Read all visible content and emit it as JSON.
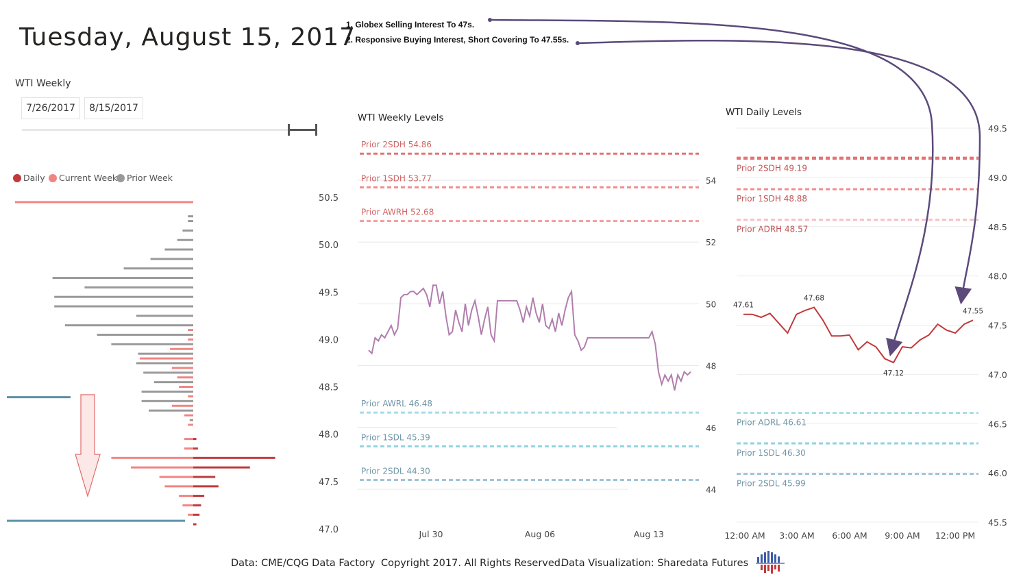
{
  "header": {
    "title": "Tuesday, August 15, 2017",
    "notes": [
      "1. Globex Selling Interest To 47s.",
      "2. Responsive Buying Interest, Short Covering To 47.55s."
    ]
  },
  "slicer": {
    "title": "WTI Weekly",
    "start_date": "7/26/2017",
    "end_date": "8/15/2017"
  },
  "legend": {
    "items": [
      {
        "label": "Daily",
        "color": "#C0393B"
      },
      {
        "label": "Current Week",
        "color": "#F28482"
      },
      {
        "label": "Prior Week",
        "color": "#999999"
      }
    ]
  },
  "footer": {
    "source": "Data: CME/CQG Data Factory",
    "copyright": "Copyright 2017. All Rights Reserved.",
    "credit": "Data Visualization: Sharedata Futures"
  },
  "chart_data": [
    {
      "type": "bar",
      "title": "Volume Profile",
      "orientation": "horizontal",
      "y_ticks": [
        "50.5",
        "50.0",
        "49.5",
        "49.0",
        "48.5",
        "48.0",
        "47.5",
        "47.0"
      ],
      "ylim": [
        47.0,
        50.5
      ],
      "series": [
        {
          "name": "Prior Week",
          "color": "#999999",
          "direction": "left",
          "levels": [
            50.3,
            50.25,
            50.15,
            50.05,
            49.95,
            49.85,
            49.75,
            49.65,
            49.55,
            49.45,
            49.35,
            49.25,
            49.15,
            49.05,
            48.95,
            48.85,
            48.75,
            48.65,
            48.55,
            48.45,
            48.35,
            48.25,
            48.15
          ],
          "values": [
            0.03,
            0.03,
            0.06,
            0.09,
            0.16,
            0.24,
            0.39,
            0.79,
            0.61,
            0.78,
            0.78,
            0.32,
            0.72,
            0.54,
            0.46,
            0.31,
            0.32,
            0.28,
            0.22,
            0.29,
            0.29,
            0.25,
            0.02
          ]
        },
        {
          "name": "Current Week",
          "color": "#F28482",
          "direction": "left",
          "levels": [
            50.45,
            49.1,
            49.0,
            48.9,
            48.8,
            48.7,
            48.6,
            48.5,
            48.4,
            48.3,
            48.2,
            48.1,
            47.95,
            47.85,
            47.75,
            47.65,
            47.55,
            47.45,
            47.35,
            47.25,
            47.15
          ],
          "values": [
            1.0,
            0.03,
            0.03,
            0.13,
            0.3,
            0.12,
            0.09,
            0.08,
            0.03,
            0.12,
            0.05,
            0.03,
            0.05,
            0.05,
            0.46,
            0.35,
            0.19,
            0.16,
            0.08,
            0.06,
            0.03
          ]
        },
        {
          "name": "Daily",
          "color": "#C0393B",
          "direction": "right",
          "levels": [
            47.95,
            47.85,
            47.75,
            47.65,
            47.55,
            47.45,
            47.35,
            47.25,
            47.15,
            47.05
          ],
          "values": [
            0.02,
            0.03,
            0.52,
            0.36,
            0.14,
            0.16,
            0.07,
            0.05,
            0.04,
            0.02
          ]
        }
      ],
      "annotation": "downward arrow toward 47.0 zone"
    },
    {
      "type": "line",
      "title": "WTI Weekly Levels",
      "x_ticks": [
        "Jul 30",
        "Aug 06",
        "Aug 13"
      ],
      "y_ticks": [
        "54",
        "52",
        "50",
        "48",
        "46",
        "44"
      ],
      "ylim": [
        43.9,
        55.5
      ],
      "levels": [
        {
          "label": "Prior 2SDH 54.86",
          "value": 54.86,
          "color": "#E57373"
        },
        {
          "label": "Prior 1SDH 53.77",
          "value": 53.77,
          "color": "#F08C8C"
        },
        {
          "label": "Prior AWRH 52.68",
          "value": 52.68,
          "color": "#F4A2A2"
        },
        {
          "label": "Prior AWRL 46.48",
          "value": 46.48,
          "color": "#A7DDE8"
        },
        {
          "label": "Prior 1SDL 45.39",
          "value": 45.39,
          "color": "#8FD3E0"
        },
        {
          "label": "Prior 2SDL 44.30",
          "value": 44.3,
          "color": "#9FC4D6"
        }
      ],
      "series": [
        {
          "name": "WTI",
          "color": "#B07EAD",
          "x": [
            0,
            1,
            2,
            3,
            4,
            5,
            6,
            7,
            8,
            9,
            10,
            11,
            12,
            13,
            14,
            15,
            16,
            17,
            18,
            19,
            20,
            21,
            22,
            23,
            24,
            25,
            26,
            27,
            28,
            29,
            30,
            31,
            32,
            33,
            34,
            35,
            36,
            37,
            38,
            39,
            40,
            41,
            42,
            43,
            44,
            45,
            46,
            47,
            48,
            49,
            50,
            51,
            52,
            53,
            54,
            55,
            56,
            57,
            58,
            59,
            60,
            61,
            62,
            63,
            64,
            65,
            66,
            67,
            68,
            69,
            70,
            71,
            72,
            73,
            74,
            75,
            76,
            77,
            78,
            79,
            80,
            81,
            82,
            83,
            84,
            85,
            86,
            87,
            88,
            89,
            90,
            91,
            92,
            93,
            94,
            95,
            96,
            97,
            98,
            99,
            100
          ],
          "y": [
            48.5,
            48.4,
            48.9,
            48.8,
            49.0,
            48.9,
            49.1,
            49.3,
            49.0,
            49.2,
            50.2,
            50.3,
            50.3,
            50.4,
            50.4,
            50.3,
            50.4,
            50.5,
            50.3,
            49.9,
            50.6,
            50.6,
            50.0,
            50.4,
            49.6,
            49.0,
            49.1,
            49.8,
            49.4,
            49.1,
            50.0,
            49.3,
            49.8,
            50.1,
            49.6,
            49.0,
            49.5,
            49.9,
            49.0,
            48.8,
            50.1,
            50.1,
            50.1,
            50.1,
            50.1,
            50.1,
            50.1,
            49.8,
            49.4,
            49.9,
            49.6,
            50.2,
            49.7,
            49.4,
            50.0,
            49.3,
            49.2,
            49.5,
            49.1,
            49.7,
            49.3,
            49.8,
            50.2,
            50.4,
            49.0,
            48.8,
            48.5,
            48.6,
            48.9,
            48.9,
            48.9,
            48.9,
            48.9,
            48.9,
            48.9,
            48.9,
            48.9,
            48.9,
            48.9,
            48.9,
            48.9,
            48.9,
            48.9,
            48.9,
            48.9,
            48.9,
            48.9,
            48.9,
            49.1,
            48.7,
            47.8,
            47.4,
            47.7,
            47.5,
            47.7,
            47.2,
            47.7,
            47.5,
            47.8,
            47.7,
            47.8
          ]
        }
      ]
    },
    {
      "type": "line",
      "title": "WTI Daily Levels",
      "x_ticks": [
        "12:00 AM",
        "3:00 AM",
        "6:00 AM",
        "9:00 AM",
        "12:00 PM"
      ],
      "y_ticks": [
        "49.5",
        "49.0",
        "48.5",
        "48.0",
        "47.5",
        "47.0",
        "46.5",
        "46.0",
        "45.5"
      ],
      "ylim": [
        45.5,
        49.5
      ],
      "levels": [
        {
          "label": "",
          "value": 49.2,
          "color": "#E57373"
        },
        {
          "label": "Prior 2SDH 49.19",
          "value": 49.19,
          "color": "#E57373"
        },
        {
          "label": "Prior 1SDH 48.88",
          "value": 48.88,
          "color": "#F08C8C"
        },
        {
          "label": "Prior ADRH 48.57",
          "value": 48.57,
          "color": "#F6C0C0"
        },
        {
          "label": "Prior ADRL 46.61",
          "value": 46.61,
          "color": "#A7DDE8"
        },
        {
          "label": "Prior 1SDL 46.30",
          "value": 46.3,
          "color": "#8FD3E0"
        },
        {
          "label": "Prior 2SDL 45.99",
          "value": 45.99,
          "color": "#9FC4D6"
        }
      ],
      "series": [
        {
          "name": "WTI",
          "color": "#C0393B",
          "x": [
            0,
            0.5,
            1,
            1.5,
            2,
            2.5,
            3,
            3.5,
            4,
            4.5,
            5,
            5.5,
            6,
            6.5,
            7,
            7.5,
            8,
            8.5,
            9,
            9.5,
            10,
            10.5,
            11,
            11.5,
            12,
            12.5,
            13
          ],
          "y": [
            47.61,
            47.61,
            47.58,
            47.62,
            47.52,
            47.42,
            47.61,
            47.65,
            47.68,
            47.55,
            47.39,
            47.39,
            47.4,
            47.25,
            47.33,
            47.28,
            47.16,
            47.12,
            47.28,
            47.27,
            47.35,
            47.4,
            47.51,
            47.45,
            47.42,
            47.51,
            47.55
          ]
        }
      ],
      "data_labels": [
        {
          "text": "47.61",
          "x": 0,
          "y": 47.61
        },
        {
          "text": "47.68",
          "x": 4,
          "y": 47.68
        },
        {
          "text": "47.12",
          "x": 8.5,
          "y": 47.12
        },
        {
          "text": "47.55",
          "x": 13,
          "y": 47.55
        }
      ]
    }
  ]
}
